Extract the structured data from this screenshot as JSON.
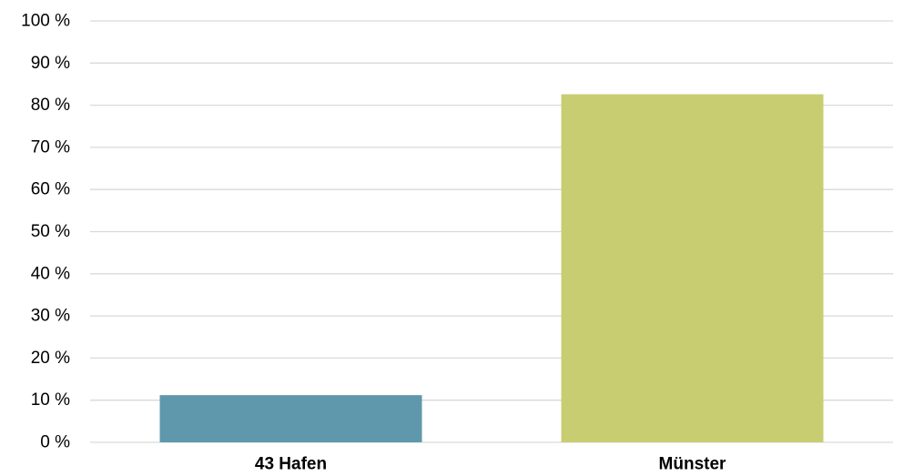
{
  "chart_data": {
    "type": "bar",
    "categories": [
      "43 Hafen",
      "Münster"
    ],
    "values": [
      11.2,
      82.6
    ],
    "colors": [
      "#5f98ad",
      "#c9cd72"
    ],
    "title": "",
    "xlabel": "",
    "ylabel": "",
    "ylim": [
      0,
      100
    ],
    "y_ticks": [
      0,
      10,
      20,
      30,
      40,
      50,
      60,
      70,
      80,
      90,
      100
    ],
    "y_tick_labels": [
      "0 %",
      "10 %",
      "20 %",
      "30 %",
      "40 %",
      "50 %",
      "60 %",
      "70 %",
      "80 %",
      "90 %",
      "100 %"
    ],
    "grid": true,
    "legend": "none"
  }
}
